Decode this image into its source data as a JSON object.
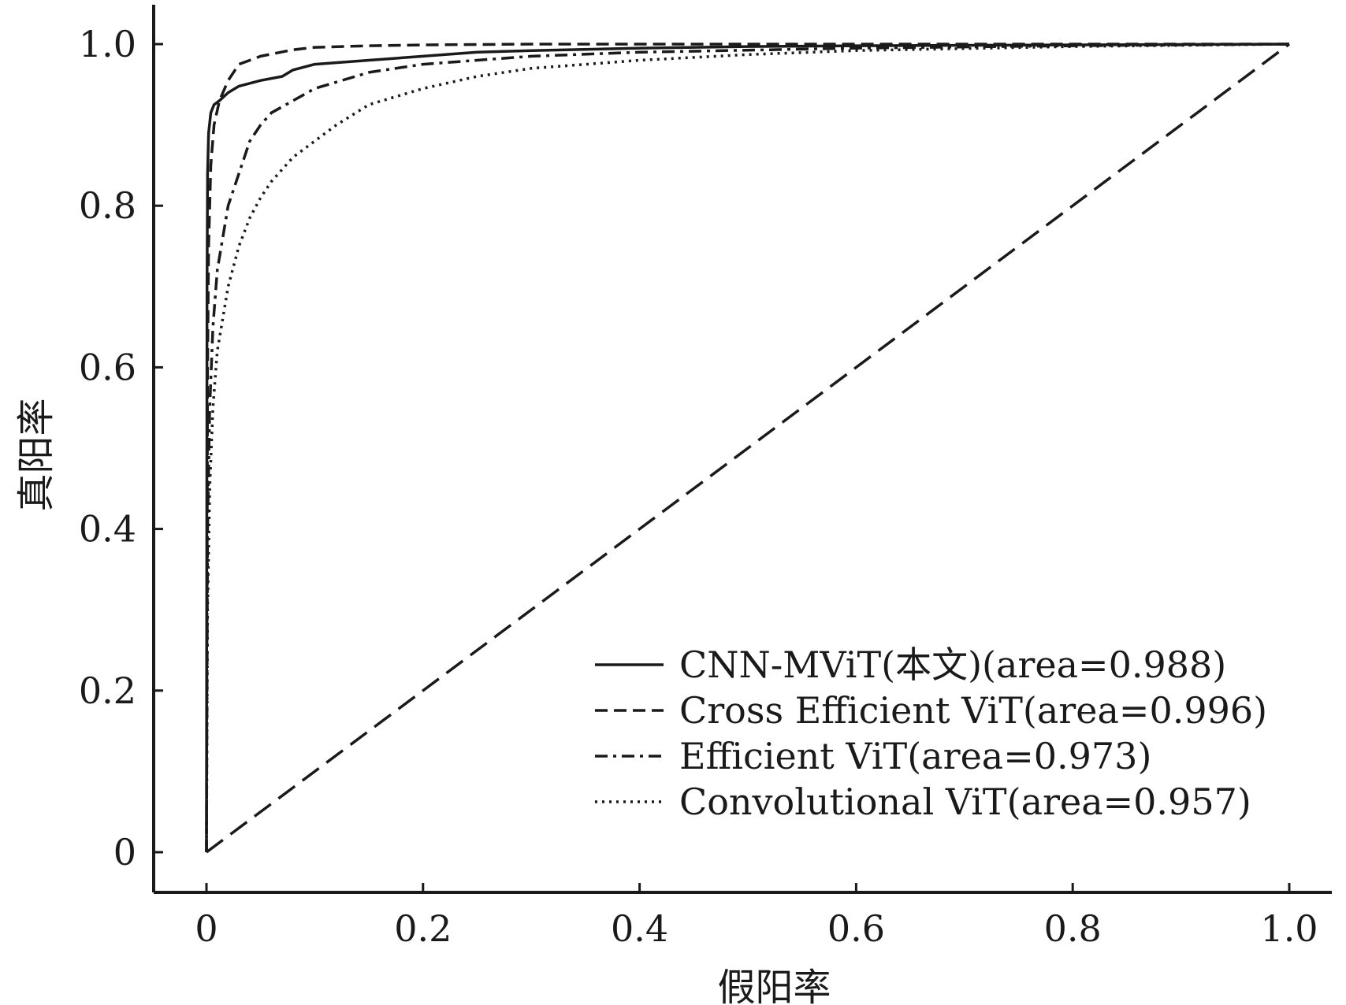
{
  "chart_data": {
    "type": "line",
    "title": "",
    "xlabel": "假阳率",
    "ylabel": "真阳率",
    "xlim": [
      0,
      1.0
    ],
    "ylim": [
      0,
      1.0
    ],
    "xticks": [
      "0",
      "0.2",
      "0.4",
      "0.6",
      "0.8",
      "1.0"
    ],
    "yticks": [
      "0",
      "0.2",
      "0.4",
      "0.6",
      "0.8",
      "1.0"
    ],
    "grid": false,
    "legend_position": "bottom-right",
    "series": [
      {
        "name": "CNN-MViT(本文)(area=0.988)",
        "style": "solid",
        "x": [
          0,
          0.0005,
          0.001,
          0.002,
          0.004,
          0.007,
          0.012,
          0.02,
          0.03,
          0.05,
          0.07,
          0.08,
          0.1,
          0.15,
          0.2,
          0.25,
          0.3,
          0.4,
          0.5,
          0.6,
          0.8,
          1.0
        ],
        "y": [
          0,
          0.7,
          0.84,
          0.89,
          0.915,
          0.925,
          0.93,
          0.94,
          0.948,
          0.955,
          0.96,
          0.968,
          0.975,
          0.98,
          0.985,
          0.99,
          0.992,
          0.995,
          0.997,
          0.998,
          0.999,
          1.0
        ]
      },
      {
        "name": "Cross Efficient ViT(area=0.996)",
        "style": "dashed",
        "x": [
          0,
          0.001,
          0.002,
          0.004,
          0.007,
          0.012,
          0.02,
          0.03,
          0.05,
          0.08,
          0.1,
          0.15,
          0.2,
          0.3,
          0.5,
          1.0
        ],
        "y": [
          0,
          0.6,
          0.75,
          0.85,
          0.9,
          0.93,
          0.955,
          0.975,
          0.985,
          0.993,
          0.996,
          0.998,
          0.999,
          1.0,
          1.0,
          1.0
        ]
      },
      {
        "name": "Efficient ViT(area=0.973)",
        "style": "dashdot",
        "x": [
          0,
          0.001,
          0.003,
          0.006,
          0.01,
          0.015,
          0.02,
          0.03,
          0.04,
          0.05,
          0.06,
          0.08,
          0.1,
          0.15,
          0.2,
          0.3,
          0.4,
          0.6,
          0.8,
          1.0
        ],
        "y": [
          0,
          0.4,
          0.55,
          0.65,
          0.72,
          0.76,
          0.8,
          0.84,
          0.88,
          0.9,
          0.915,
          0.93,
          0.945,
          0.965,
          0.975,
          0.985,
          0.99,
          0.995,
          0.998,
          1.0
        ]
      },
      {
        "name": "Convolutional ViT(area=0.957)",
        "style": "dotted",
        "x": [
          0,
          0.001,
          0.003,
          0.006,
          0.01,
          0.02,
          0.03,
          0.04,
          0.05,
          0.06,
          0.08,
          0.1,
          0.12,
          0.15,
          0.2,
          0.25,
          0.3,
          0.4,
          0.5,
          0.6,
          0.8,
          1.0
        ],
        "y": [
          0,
          0.3,
          0.45,
          0.55,
          0.62,
          0.7,
          0.75,
          0.785,
          0.81,
          0.83,
          0.86,
          0.88,
          0.9,
          0.925,
          0.945,
          0.96,
          0.97,
          0.98,
          0.987,
          0.992,
          0.997,
          1.0
        ]
      },
      {
        "name": "",
        "style": "diagonal-dashed",
        "x": [
          0,
          1.0
        ],
        "y": [
          0,
          1.0
        ]
      }
    ]
  }
}
